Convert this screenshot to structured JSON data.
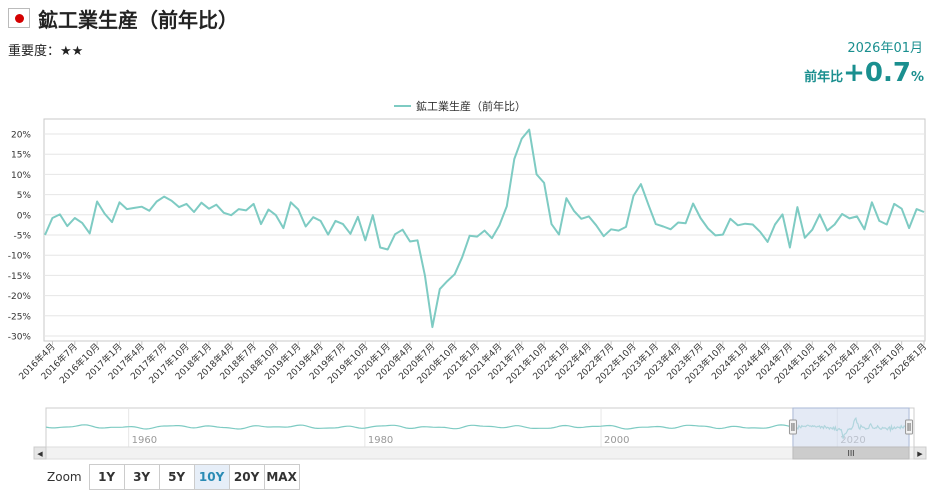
{
  "header": {
    "title": "鉱工業生産（前年比）",
    "importance_label": "重要度：",
    "importance_stars": "★★",
    "period": "2026年01月",
    "change_label": "前年比",
    "change_value": "+0.7",
    "change_unit": "%"
  },
  "colors": {
    "series": "#7ecbc3",
    "accent": "#1a8f8f",
    "flag_red": "#d40000",
    "navigator_mask": "#d2dcee"
  },
  "zoom": {
    "label": "Zoom",
    "buttons": [
      "1Y",
      "3Y",
      "5Y",
      "10Y",
      "20Y",
      "MAX"
    ],
    "active": "10Y"
  },
  "navigator": {
    "year_labels": [
      "1960",
      "1980",
      "2000",
      "2020"
    ],
    "year_values": [
      1960,
      1980,
      2000,
      2020
    ],
    "range": [
      1953,
      2026.5
    ],
    "selected": [
      2016.25,
      2026.08
    ],
    "scroll_grip": "III",
    "scroll_left_arrow": "◀",
    "scroll_right_arrow": "▶"
  },
  "chart_data": {
    "type": "line",
    "legend": [
      "鉱工業生産（前年比）"
    ],
    "legend_position": "top-center",
    "grid": true,
    "ylim": [
      -30,
      20
    ],
    "yticks": [
      "-30%",
      "-25%",
      "-20%",
      "-15%",
      "-10%",
      "-5%",
      "0%",
      "5%",
      "10%",
      "15%",
      "20%"
    ],
    "xticks": [
      "2016年4月",
      "2016年7月",
      "2016年10月",
      "2017年1月",
      "2017年4月",
      "2017年7月",
      "2017年10月",
      "2018年1月",
      "2018年4月",
      "2018年7月",
      "2018年10月",
      "2019年1月",
      "2019年4月",
      "2019年7月",
      "2019年10月",
      "2020年1月",
      "2020年4月",
      "2020年7月",
      "2020年10月",
      "2021年1月",
      "2021年4月",
      "2021年7月",
      "2021年10月",
      "2022年1月",
      "2022年4月",
      "2022年7月",
      "2022年10月",
      "2023年1月",
      "2023年4月",
      "2023年7月",
      "2023年10月",
      "2024年1月",
      "2024年4月",
      "2024年7月",
      "2024年10月",
      "2025年1月",
      "2025年4月",
      "2025年7月",
      "2025年10月",
      "2026年1月"
    ],
    "series": [
      {
        "name": "鉱工業生産（前年比）",
        "start": "2016年3月",
        "values": [
          -5.0,
          -0.8,
          0.1,
          -2.8,
          -0.8,
          -2.0,
          -4.6,
          3.3,
          0.3,
          -1.8,
          3.1,
          1.4,
          1.7,
          2.0,
          1.0,
          3.3,
          4.5,
          3.5,
          1.9,
          2.7,
          0.7,
          3.0,
          1.5,
          2.5,
          0.5,
          -0.1,
          1.4,
          1.1,
          2.7,
          -2.3,
          1.3,
          -0.1,
          -3.3,
          3.1,
          1.3,
          -2.9,
          -0.6,
          -1.5,
          -4.9,
          -1.5,
          -2.3,
          -4.7,
          -0.5,
          -6.3,
          -0.1,
          -8.1,
          -8.6,
          -4.8,
          -3.7,
          -6.6,
          -6.3,
          -15.0,
          -27.8,
          -18.4,
          -16.4,
          -14.7,
          -10.5,
          -5.2,
          -5.4,
          -3.9,
          -5.8,
          -2.6,
          2.1,
          13.8,
          18.8,
          21.1,
          10.0,
          7.9,
          -2.3,
          -4.9,
          4.1,
          1.0,
          -1.0,
          -0.4,
          -2.6,
          -5.3,
          -3.6,
          -3.9,
          -3.0,
          4.7,
          7.6,
          2.5,
          -2.3,
          -2.9,
          -3.6,
          -1.9,
          -2.1,
          2.8,
          -0.8,
          -3.4,
          -5.1,
          -4.9,
          -1.0,
          -2.6,
          -2.2,
          -2.4,
          -4.2,
          -6.7,
          -2.4,
          0.1,
          -8.1,
          1.9,
          -5.7,
          -3.7,
          0.1,
          -3.9,
          -2.4,
          0.2,
          -0.9,
          -0.4,
          -3.6,
          3.1,
          -1.5,
          -2.4,
          2.7,
          1.5,
          -3.3,
          1.4,
          0.7
        ]
      }
    ]
  }
}
